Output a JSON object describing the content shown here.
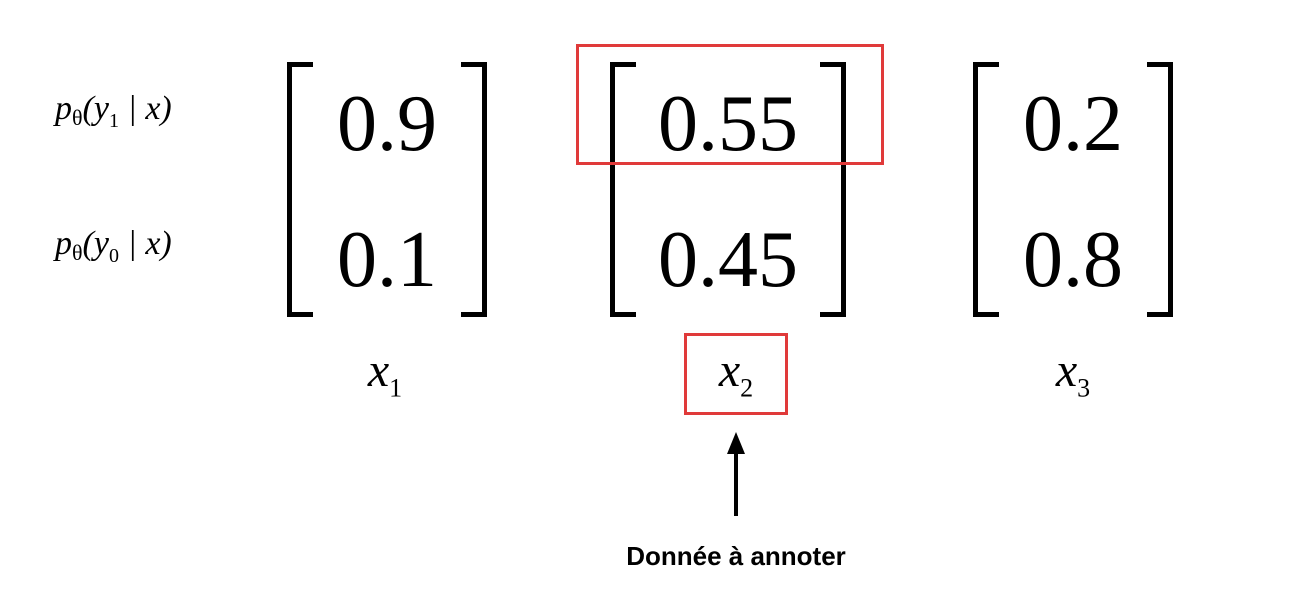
{
  "row_labels": {
    "p_label": "p",
    "theta": "θ",
    "open": "(",
    "y": "y",
    "y1_sub": "1",
    "y0_sub": "0",
    "given": " | x)"
  },
  "matrices": [
    {
      "top": "0.9",
      "bottom": "0.1",
      "label": "x",
      "label_sub": "1"
    },
    {
      "top": "0.55",
      "bottom": "0.45",
      "label": "x",
      "label_sub": "2"
    },
    {
      "top": "0.2",
      "bottom": "0.8",
      "label": "x",
      "label_sub": "3"
    }
  ],
  "caption": "Donnée à annoter",
  "colors": {
    "highlight": "#e03a3a",
    "text": "#000000"
  },
  "icons": {
    "arrow": "arrow-up-icon"
  }
}
